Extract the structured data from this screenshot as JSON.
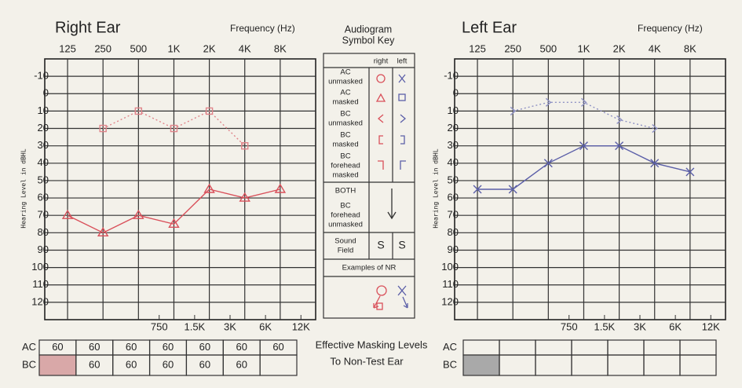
{
  "chart_data": [
    {
      "type": "line",
      "title": "Right Ear",
      "x_label": "Frequency (Hz)",
      "y_label": "Hearing Level in dBHL",
      "xscale": "log",
      "yinverted": true,
      "grid": true,
      "xlim": [
        80,
        16000
      ],
      "ylim": [
        -20,
        130
      ],
      "xticks": [
        125,
        250,
        500,
        {
          "value": 1000,
          "label": "1K"
        },
        {
          "value": 2000,
          "label": "2K"
        },
        {
          "value": 4000,
          "label": "4K"
        },
        {
          "value": 8000,
          "label": "8K"
        }
      ],
      "xticks_bottom": [
        750,
        {
          "value": 1500,
          "label": "1.5K"
        },
        {
          "value": 3000,
          "label": "3K"
        },
        {
          "value": 6000,
          "label": "6K"
        },
        {
          "value": 12000,
          "label": "12K"
        }
      ],
      "yticks": [
        -10,
        0,
        10,
        20,
        30,
        40,
        50,
        60,
        70,
        80,
        90,
        100,
        110,
        120
      ],
      "x": [
        125,
        250,
        500,
        1000,
        2000,
        4000,
        8000
      ],
      "series": [
        {
          "color": "#d9505a",
          "marker": "triangle",
          "dashed": false,
          "values": [
            70,
            80,
            70,
            75,
            55,
            60,
            55
          ]
        },
        {
          "color": "#e0848a",
          "marker": "square",
          "dashed": true,
          "values": [
            null,
            20,
            10,
            20,
            10,
            30,
            null
          ]
        }
      ]
    },
    {
      "type": "line",
      "title": "Left Ear",
      "x_label": "Frequency (Hz)",
      "y_label": "Hearing Level in dBHL",
      "xscale": "log",
      "yinverted": true,
      "grid": true,
      "xlim": [
        80,
        16000
      ],
      "ylim": [
        -20,
        130
      ],
      "xticks": [
        125,
        250,
        500,
        {
          "value": 1000,
          "label": "1K"
        },
        {
          "value": 2000,
          "label": "2K"
        },
        {
          "value": 4000,
          "label": "4K"
        },
        {
          "value": 8000,
          "label": "8K"
        }
      ],
      "xticks_bottom": [
        750,
        {
          "value": 1500,
          "label": "1.5K"
        },
        {
          "value": 3000,
          "label": "3K"
        },
        {
          "value": 6000,
          "label": "6K"
        },
        {
          "value": 12000,
          "label": "12K"
        }
      ],
      "yticks": [
        -10,
        0,
        10,
        20,
        30,
        40,
        50,
        60,
        70,
        80,
        90,
        100,
        110,
        120
      ],
      "x": [
        125,
        250,
        500,
        1000,
        2000,
        4000,
        8000
      ],
      "series": [
        {
          "color": "#5b5fa8",
          "marker": "x",
          "dashed": false,
          "values": [
            55,
            55,
            40,
            30,
            30,
            40,
            45
          ]
        },
        {
          "color": "#8f92c4",
          "marker": "chevron",
          "dashed": true,
          "values": [
            null,
            10,
            5,
            5,
            15,
            20,
            null
          ]
        }
      ]
    }
  ],
  "key": {
    "title": [
      "Audiogram",
      "Symbol Key"
    ],
    "columns": [
      "right",
      "left"
    ],
    "rows": [
      {
        "label": [
          "AC",
          "unmasked"
        ]
      },
      {
        "label": [
          "AC",
          "masked"
        ]
      },
      {
        "label": [
          "BC",
          "unmasked"
        ]
      },
      {
        "label": [
          "BC",
          "masked"
        ]
      },
      {
        "label": [
          "BC",
          "forehead",
          "masked"
        ]
      },
      {
        "label": [
          "BOTH",
          "BC",
          "forehead",
          "unmasked"
        ]
      },
      {
        "label": [
          "Sound",
          "Field"
        ],
        "symbols": [
          "S",
          "S"
        ]
      },
      {
        "label": [
          "Examples of NR"
        ]
      }
    ]
  },
  "masking": {
    "title": [
      "Effective Masking Levels",
      "To Non-Test Ear"
    ],
    "right": [
      {
        "label": "AC",
        "values": [
          60,
          60,
          60,
          60,
          60,
          60,
          60
        ]
      },
      {
        "label": "BC",
        "values": [
          null,
          60,
          60,
          60,
          60,
          60,
          null
        ]
      }
    ],
    "left": [
      {
        "label": "AC",
        "values": [
          null,
          null,
          null,
          null,
          null,
          null,
          null
        ]
      },
      {
        "label": "BC",
        "values": [
          null,
          null,
          null,
          null,
          null,
          null,
          null
        ]
      }
    ]
  }
}
